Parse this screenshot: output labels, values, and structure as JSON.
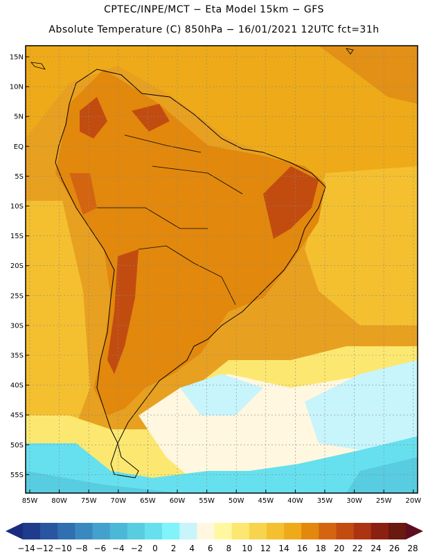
{
  "header": {
    "line1": "CPTEC/INPE/MCT −  Eta Model 15km − GFS",
    "line2": "Absolute Temperature (C) 850hPa − 16/01/2021 12UTC fct=31h"
  },
  "map": {
    "lat_labels": [
      "15N",
      "10N",
      "5N",
      "EQ",
      "5S",
      "10S",
      "15S",
      "20S",
      "25S",
      "30S",
      "35S",
      "40S",
      "45S",
      "50S",
      "55S"
    ],
    "lon_labels": [
      "85W",
      "80W",
      "75W",
      "70W",
      "65W",
      "60W",
      "55W",
      "50W",
      "45W",
      "40W",
      "35W",
      "30W",
      "25W",
      "20W"
    ],
    "background_color": "#e8a020"
  },
  "colorbar": {
    "labels": [
      "-14",
      "-12",
      "-10",
      "-8",
      "-6",
      "-4",
      "-2",
      "0",
      "2",
      "4",
      "6",
      "8",
      "10",
      "12",
      "14",
      "16",
      "18",
      "20",
      "22",
      "24",
      "26",
      "28"
    ],
    "colors": [
      "#1f3c8c",
      "#2a55a0",
      "#3070b0",
      "#3a88c0",
      "#44a0cc",
      "#4cb8d8",
      "#58cce0",
      "#66e0ee",
      "#80f4fa",
      "#c8f4fc",
      "#fff7e0",
      "#fff8a0",
      "#fce870",
      "#f8d44e",
      "#f4c030",
      "#eeaa18",
      "#e2880c",
      "#d46410",
      "#c24c10",
      "#ac3410",
      "#8c2010",
      "#6a1810"
    ],
    "left_arrow_color": "#1a2c80",
    "right_arrow_color": "#5e0e1e"
  }
}
